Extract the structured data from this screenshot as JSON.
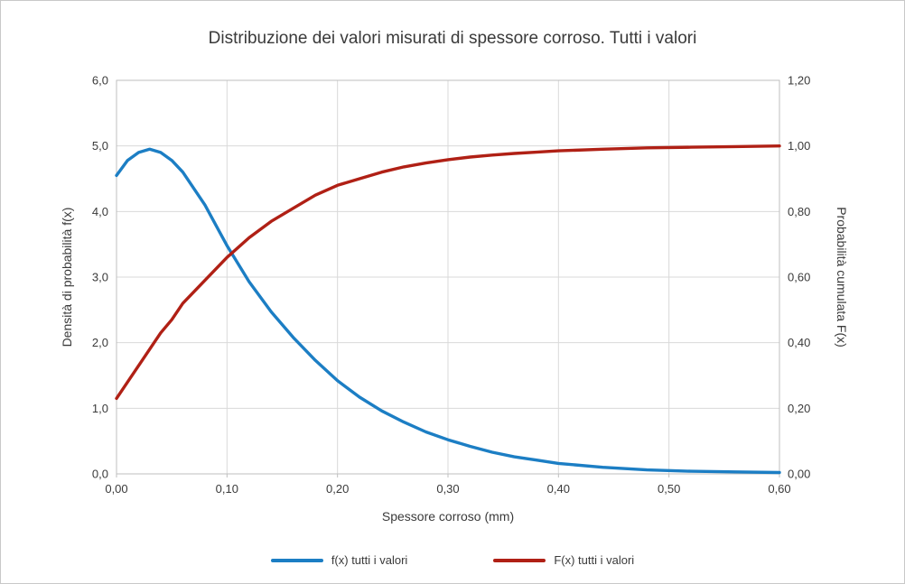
{
  "window": {
    "background": "#FFFFFF",
    "border_color": "#C9C9C9"
  },
  "chart_data": {
    "type": "line",
    "title": "Distribuzione dei valori misurati di spessore corroso. Tutti i valori",
    "xlabel": "Spessore corroso (mm)",
    "ylabel_left": "Densità di probabilità f(x)",
    "ylabel_right": "Probabilità cumulata F(x)",
    "xlim": [
      0.0,
      0.6
    ],
    "ylim_left": [
      0.0,
      6.0
    ],
    "ylim_right": [
      0.0,
      1.2
    ],
    "x_tick_labels": [
      "0,00",
      "0,10",
      "0,20",
      "0,30",
      "0,40",
      "0,50",
      "0,60"
    ],
    "y_tick_labels_left": [
      "0,0",
      "1,0",
      "2,0",
      "3,0",
      "4,0",
      "5,0",
      "6,0"
    ],
    "y_tick_labels_right": [
      "0,00",
      "0,20",
      "0,40",
      "0,60",
      "0,80",
      "1,00",
      "1,20"
    ],
    "grid": true,
    "grid_color": "#D9D9D9",
    "axis_color": "#BFBFBF",
    "text_color": "#3A3A3A",
    "legend_position": "bottom",
    "series": [
      {
        "name": "f(x) tutti i valori",
        "axis": "left",
        "color": "#1C7EC4",
        "x": [
          0.0,
          0.01,
          0.02,
          0.03,
          0.04,
          0.05,
          0.06,
          0.08,
          0.1,
          0.12,
          0.14,
          0.16,
          0.18,
          0.2,
          0.22,
          0.24,
          0.26,
          0.28,
          0.3,
          0.32,
          0.34,
          0.36,
          0.38,
          0.4,
          0.44,
          0.48,
          0.52,
          0.56,
          0.6
        ],
        "y": [
          4.55,
          4.78,
          4.9,
          4.95,
          4.9,
          4.78,
          4.6,
          4.1,
          3.48,
          2.93,
          2.47,
          2.08,
          1.73,
          1.42,
          1.17,
          0.96,
          0.79,
          0.64,
          0.52,
          0.42,
          0.33,
          0.26,
          0.21,
          0.16,
          0.1,
          0.06,
          0.04,
          0.03,
          0.02
        ]
      },
      {
        "name": "F(x) tutti i valori",
        "axis": "right",
        "color": "#B02015",
        "x": [
          0.0,
          0.01,
          0.02,
          0.03,
          0.04,
          0.05,
          0.06,
          0.08,
          0.1,
          0.12,
          0.14,
          0.16,
          0.18,
          0.2,
          0.22,
          0.24,
          0.26,
          0.28,
          0.3,
          0.32,
          0.34,
          0.36,
          0.38,
          0.4,
          0.44,
          0.48,
          0.52,
          0.56,
          0.6
        ],
        "y": [
          0.23,
          0.28,
          0.33,
          0.38,
          0.43,
          0.47,
          0.52,
          0.59,
          0.66,
          0.72,
          0.77,
          0.81,
          0.85,
          0.88,
          0.9,
          0.92,
          0.936,
          0.948,
          0.958,
          0.966,
          0.972,
          0.977,
          0.981,
          0.985,
          0.99,
          0.994,
          0.996,
          0.998,
          1.0
        ]
      }
    ]
  }
}
